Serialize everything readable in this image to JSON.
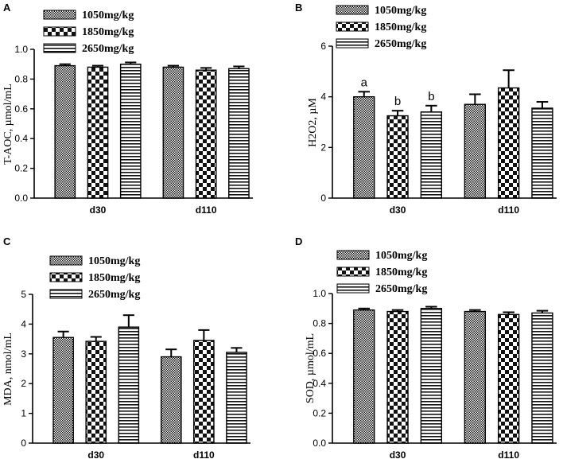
{
  "chart_data": [
    {
      "panel": "A",
      "type": "bar",
      "ylabel": "T-AOC, µmol/mL",
      "ylim": [
        0,
        1.0
      ],
      "yticks": [
        "0.0",
        "0.2",
        "0.4",
        "0.6",
        "0.8",
        "1.0"
      ],
      "categories": [
        "d30",
        "d110"
      ],
      "series": [
        {
          "name": "1050mg/kg",
          "values": [
            0.89,
            0.88
          ],
          "errors": [
            0.01,
            0.01
          ]
        },
        {
          "name": "1850mg/kg",
          "values": [
            0.88,
            0.86
          ],
          "errors": [
            0.01,
            0.015
          ]
        },
        {
          "name": "2650mg/kg",
          "values": [
            0.9,
            0.87
          ],
          "errors": [
            0.012,
            0.015
          ]
        }
      ],
      "annotations": []
    },
    {
      "panel": "B",
      "type": "bar",
      "ylabel": "H2O2, µM",
      "ylim": [
        0,
        6
      ],
      "yticks": [
        "0",
        "2",
        "4",
        "6"
      ],
      "categories": [
        "d30",
        "d110"
      ],
      "series": [
        {
          "name": "1050mg/kg",
          "values": [
            4.0,
            3.7
          ],
          "errors": [
            0.2,
            0.4
          ]
        },
        {
          "name": "1850mg/kg",
          "values": [
            3.25,
            4.35
          ],
          "errors": [
            0.2,
            0.7
          ]
        },
        {
          "name": "2650mg/kg",
          "values": [
            3.4,
            3.55
          ],
          "errors": [
            0.25,
            0.25
          ]
        }
      ],
      "annotations": [
        {
          "category": "d30",
          "series": 0,
          "text": "a"
        },
        {
          "category": "d30",
          "series": 1,
          "text": "b"
        },
        {
          "category": "d30",
          "series": 2,
          "text": "b"
        }
      ]
    },
    {
      "panel": "C",
      "type": "bar",
      "ylabel": "MDA, nmol/mL",
      "ylim": [
        0,
        5
      ],
      "yticks": [
        "0",
        "1",
        "2",
        "3",
        "4",
        "5"
      ],
      "categories": [
        "d30",
        "d110"
      ],
      "series": [
        {
          "name": "1050mg/kg",
          "values": [
            3.55,
            2.9
          ],
          "errors": [
            0.2,
            0.25
          ]
        },
        {
          "name": "1850mg/kg",
          "values": [
            3.42,
            3.45
          ],
          "errors": [
            0.15,
            0.35
          ]
        },
        {
          "name": "2650mg/kg",
          "values": [
            3.9,
            3.05
          ],
          "errors": [
            0.4,
            0.15
          ]
        }
      ],
      "annotations": []
    },
    {
      "panel": "D",
      "type": "bar",
      "ylabel": "SOD, µmol/mL",
      "ylim": [
        0,
        1.0
      ],
      "yticks": [
        "0.0",
        "0.2",
        "0.4",
        "0.6",
        "0.8",
        "1.0"
      ],
      "categories": [
        "d30",
        "d110"
      ],
      "series": [
        {
          "name": "1050mg/kg",
          "values": [
            0.89,
            0.88
          ],
          "errors": [
            0.01,
            0.01
          ]
        },
        {
          "name": "1850mg/kg",
          "values": [
            0.88,
            0.86
          ],
          "errors": [
            0.01,
            0.015
          ]
        },
        {
          "name": "2650mg/kg",
          "values": [
            0.9,
            0.87
          ],
          "errors": [
            0.012,
            0.015
          ]
        }
      ],
      "annotations": []
    }
  ]
}
